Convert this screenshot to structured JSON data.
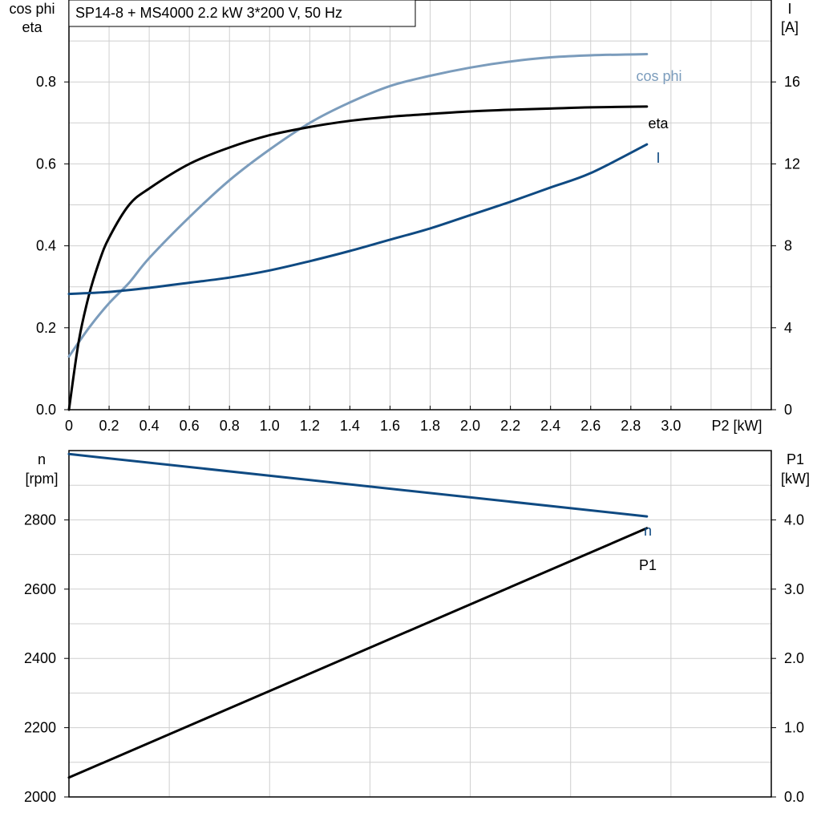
{
  "title": "SP14-8 + MS4000   2.2 kW   3*200 V, 50 Hz",
  "colors": {
    "cos_phi": "#7b9cbc",
    "eta": "#000000",
    "I": "#0f4a82",
    "n": "#0f4a82",
    "P1": "#000000",
    "grid": "#cfcfcf"
  },
  "chart_data": [
    {
      "type": "line",
      "title": "SP14-8 + MS4000   2.2 kW   3*200 V, 50 Hz",
      "xlabel": "P2 [kW]",
      "ylabel_left": [
        "cos phi",
        "eta"
      ],
      "ylabel_right": [
        "I",
        "[A]"
      ],
      "xlim": [
        0,
        3.5
      ],
      "ylim_left": [
        0,
        1.0
      ],
      "ylim_right": [
        0,
        20
      ],
      "x_ticks": [
        "0",
        "0.2",
        "0.4",
        "0.6",
        "0.8",
        "1.0",
        "1.2",
        "1.4",
        "1.6",
        "1.8",
        "2.0",
        "2.2",
        "2.4",
        "2.6",
        "2.8",
        "3.0"
      ],
      "y_left_ticks": [
        "0.0",
        "0.2",
        "0.4",
        "0.6",
        "0.8"
      ],
      "y_right_ticks": [
        "0",
        "4",
        "8",
        "12",
        "16"
      ],
      "grid": true,
      "series": [
        {
          "name": "cos phi",
          "axis": "left",
          "color": "#7b9cbc",
          "x": [
            0,
            0.1,
            0.2,
            0.3,
            0.4,
            0.6,
            0.8,
            1.0,
            1.2,
            1.4,
            1.6,
            1.8,
            2.0,
            2.2,
            2.4,
            2.6,
            2.88
          ],
          "y": [
            0.13,
            0.2,
            0.26,
            0.31,
            0.37,
            0.47,
            0.56,
            0.635,
            0.7,
            0.75,
            0.79,
            0.815,
            0.835,
            0.85,
            0.86,
            0.865,
            0.868
          ]
        },
        {
          "name": "eta",
          "axis": "left",
          "color": "#000000",
          "x": [
            0,
            0.05,
            0.1,
            0.15,
            0.2,
            0.3,
            0.4,
            0.6,
            0.8,
            1.0,
            1.2,
            1.4,
            1.6,
            1.8,
            2.0,
            2.2,
            2.4,
            2.6,
            2.88
          ],
          "y": [
            0.0,
            0.17,
            0.28,
            0.36,
            0.42,
            0.5,
            0.54,
            0.6,
            0.64,
            0.67,
            0.69,
            0.705,
            0.715,
            0.722,
            0.728,
            0.732,
            0.735,
            0.738,
            0.74
          ]
        },
        {
          "name": "I",
          "axis": "right",
          "color": "#0f4a82",
          "x": [
            0,
            0.2,
            0.4,
            0.6,
            0.8,
            1.0,
            1.2,
            1.4,
            1.6,
            1.8,
            2.0,
            2.2,
            2.4,
            2.6,
            2.88
          ],
          "y": [
            5.65,
            5.75,
            5.95,
            6.2,
            6.45,
            6.8,
            7.25,
            7.75,
            8.3,
            8.85,
            9.5,
            10.15,
            10.85,
            11.55,
            12.95
          ]
        }
      ]
    },
    {
      "type": "line",
      "ylabel_left": [
        "n",
        "[rpm]"
      ],
      "ylabel_right": [
        "P1",
        "[kW]"
      ],
      "xlim": [
        0,
        3.5
      ],
      "ylim_left": [
        2000,
        3000
      ],
      "ylim_right": [
        0,
        5
      ],
      "y_left_ticks": [
        "2000",
        "2200",
        "2400",
        "2600",
        "2800"
      ],
      "y_right_ticks": [
        "0.0",
        "1.0",
        "2.0",
        "3.0",
        "4.0"
      ],
      "grid": true,
      "series": [
        {
          "name": "n",
          "axis": "left",
          "color": "#0f4a82",
          "x": [
            0,
            2.88
          ],
          "y": [
            2990,
            2810
          ]
        },
        {
          "name": "P1",
          "axis": "right",
          "color": "#000000",
          "x": [
            0,
            2.88
          ],
          "y": [
            0.28,
            3.88
          ]
        }
      ]
    }
  ]
}
